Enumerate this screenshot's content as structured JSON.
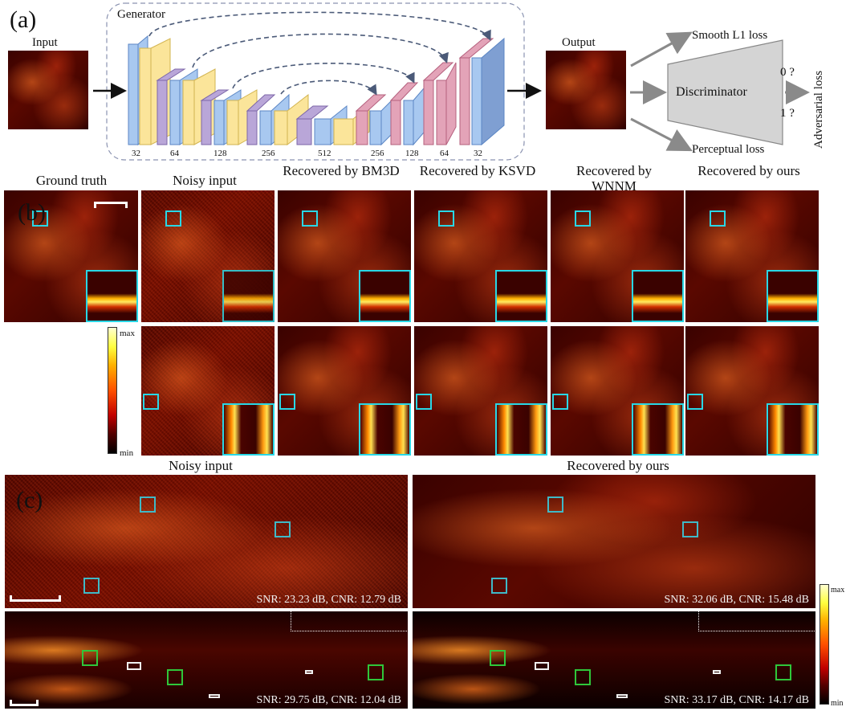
{
  "panel_labels": {
    "a": "(a)",
    "b": "(b)",
    "c": "(c)"
  },
  "network": {
    "input_label": "Input",
    "generator_label": "Generator",
    "output_label": "Output",
    "discriminator_label": "Discriminator",
    "losses": {
      "smooth_l1": "Smooth L1 loss",
      "perceptual": "Perceptual loss",
      "adversarial": "Adversarial loss"
    },
    "disc_outputs": {
      "zero": "0 ?",
      "one": "1 ?"
    },
    "encoder_channels": [
      "32",
      "64",
      "128",
      "256",
      "512"
    ],
    "decoder_channels": [
      "256",
      "128",
      "64",
      "32"
    ],
    "colors": {
      "blue": "#a8c8f0",
      "yellow": "#fbe59a",
      "purple": "#b9a6d8",
      "pink": "#e3a3b8",
      "discriminator": "#d4d4d4"
    }
  },
  "comparison": {
    "columns": [
      "Ground truth",
      "Noisy input",
      "Recovered by BM3D",
      "Recovered by KSVD",
      "Recovered by WNNM",
      "Recovered by ours"
    ],
    "colorbar": {
      "max": "max",
      "min": "min"
    },
    "zoom_color": "#28d7e6"
  },
  "large": {
    "titles": {
      "noisy": "Noisy input",
      "ours": "Recovered by ours"
    },
    "stats": {
      "noisy_top": "SNR: 23.23 dB, CNR: 12.79 dB",
      "ours_top": "SNR: 32.06 dB, CNR: 15.48 dB",
      "noisy_bottom": "SNR: 29.75 dB, CNR: 12.04 dB",
      "ours_bottom": "SNR: 33.17 dB, CNR: 14.17 dB"
    },
    "colorbar": {
      "max": "max",
      "min": "min"
    }
  }
}
